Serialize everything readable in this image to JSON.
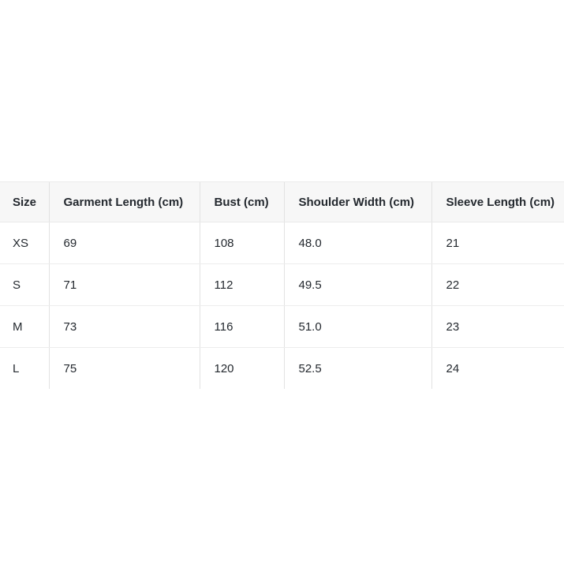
{
  "chart_data": {
    "type": "table",
    "columns": [
      "Size",
      "Garment Length (cm)",
      "Bust (cm)",
      "Shoulder Width (cm)",
      "Sleeve Length (cm)"
    ],
    "rows": [
      [
        "XS",
        "69",
        "108",
        "48.0",
        "21"
      ],
      [
        "S",
        "71",
        "112",
        "49.5",
        "22"
      ],
      [
        "M",
        "73",
        "116",
        "51.0",
        "23"
      ],
      [
        "L",
        "75",
        "120",
        "52.5",
        "24"
      ]
    ],
    "layout_hints": {
      "header_background": "#f7f7f7",
      "row_background": "#ffffff",
      "border_color": "#e6e6e6",
      "text_color": "#24292f",
      "table_clipped_right": true,
      "table_clipped_bottom": true
    }
  }
}
